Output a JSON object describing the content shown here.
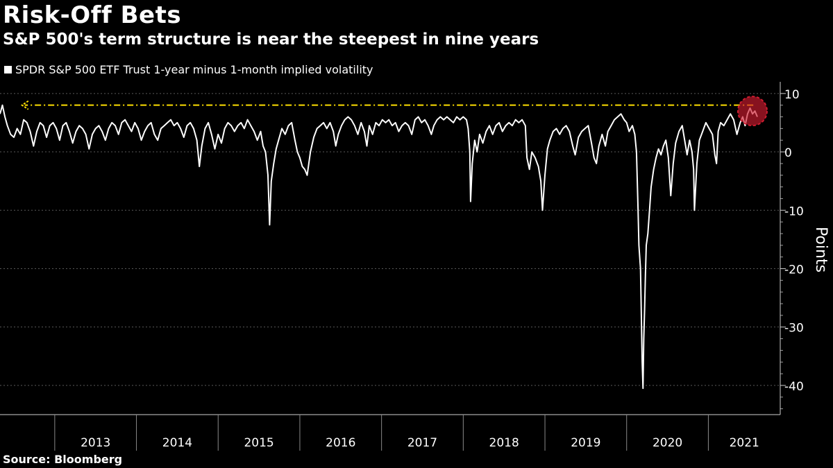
{
  "chart_data": {
    "type": "line",
    "title": "Risk-Off Bets",
    "subtitle": "S&P 500's term structure is near the steepest in nine years",
    "series": [
      {
        "name": "SPDR S&P 500 ETF Trust 1-year minus 1-month implied volatility",
        "color": "#ffffff",
        "points": [
          [
            2012.33,
            6.5
          ],
          [
            2012.36,
            8.0
          ],
          [
            2012.39,
            6.0
          ],
          [
            2012.42,
            4.5
          ],
          [
            2012.46,
            3.0
          ],
          [
            2012.5,
            2.5
          ],
          [
            2012.54,
            4.0
          ],
          [
            2012.58,
            3.0
          ],
          [
            2012.62,
            5.5
          ],
          [
            2012.66,
            5.0
          ],
          [
            2012.7,
            3.5
          ],
          [
            2012.74,
            1.0
          ],
          [
            2012.78,
            3.5
          ],
          [
            2012.82,
            5.0
          ],
          [
            2012.86,
            4.5
          ],
          [
            2012.9,
            2.5
          ],
          [
            2012.94,
            4.5
          ],
          [
            2012.98,
            5.0
          ],
          [
            2013.02,
            4.0
          ],
          [
            2013.06,
            2.0
          ],
          [
            2013.1,
            4.5
          ],
          [
            2013.14,
            5.0
          ],
          [
            2013.18,
            3.5
          ],
          [
            2013.22,
            1.5
          ],
          [
            2013.26,
            3.5
          ],
          [
            2013.3,
            4.5
          ],
          [
            2013.34,
            4.0
          ],
          [
            2013.38,
            3.0
          ],
          [
            2013.42,
            0.5
          ],
          [
            2013.46,
            3.0
          ],
          [
            2013.5,
            4.0
          ],
          [
            2013.54,
            4.5
          ],
          [
            2013.58,
            3.5
          ],
          [
            2013.62,
            2.0
          ],
          [
            2013.66,
            4.0
          ],
          [
            2013.7,
            5.0
          ],
          [
            2013.74,
            4.5
          ],
          [
            2013.78,
            3.0
          ],
          [
            2013.82,
            5.0
          ],
          [
            2013.86,
            5.5
          ],
          [
            2013.9,
            4.5
          ],
          [
            2013.94,
            3.5
          ],
          [
            2013.98,
            5.0
          ],
          [
            2014.02,
            4.0
          ],
          [
            2014.06,
            2.0
          ],
          [
            2014.1,
            3.5
          ],
          [
            2014.14,
            4.5
          ],
          [
            2014.18,
            5.0
          ],
          [
            2014.22,
            3.0
          ],
          [
            2014.26,
            2.0
          ],
          [
            2014.3,
            4.0
          ],
          [
            2014.34,
            4.5
          ],
          [
            2014.38,
            5.0
          ],
          [
            2014.42,
            5.5
          ],
          [
            2014.46,
            4.5
          ],
          [
            2014.5,
            5.0
          ],
          [
            2014.54,
            4.0
          ],
          [
            2014.58,
            2.5
          ],
          [
            2014.62,
            4.5
          ],
          [
            2014.66,
            5.0
          ],
          [
            2014.7,
            4.0
          ],
          [
            2014.74,
            2.0
          ],
          [
            2014.77,
            -2.5
          ],
          [
            2014.8,
            1.0
          ],
          [
            2014.84,
            4.0
          ],
          [
            2014.88,
            5.0
          ],
          [
            2014.92,
            3.0
          ],
          [
            2014.96,
            0.5
          ],
          [
            2015.0,
            3.0
          ],
          [
            2015.04,
            1.5
          ],
          [
            2015.08,
            4.0
          ],
          [
            2015.12,
            5.0
          ],
          [
            2015.16,
            4.5
          ],
          [
            2015.2,
            3.5
          ],
          [
            2015.24,
            4.5
          ],
          [
            2015.28,
            5.0
          ],
          [
            2015.32,
            4.0
          ],
          [
            2015.36,
            5.5
          ],
          [
            2015.4,
            4.5
          ],
          [
            2015.44,
            3.5
          ],
          [
            2015.48,
            2.0
          ],
          [
            2015.52,
            3.5
          ],
          [
            2015.55,
            1.0
          ],
          [
            2015.58,
            0.0
          ],
          [
            2015.61,
            -4.0
          ],
          [
            2015.63,
            -12.5
          ],
          [
            2015.65,
            -5.0
          ],
          [
            2015.68,
            -2.0
          ],
          [
            2015.71,
            0.5
          ],
          [
            2015.74,
            2.0
          ],
          [
            2015.78,
            4.0
          ],
          [
            2015.82,
            3.0
          ],
          [
            2015.86,
            4.5
          ],
          [
            2015.9,
            5.0
          ],
          [
            2015.94,
            2.0
          ],
          [
            2015.97,
            0.0
          ],
          [
            2016.0,
            -1.0
          ],
          [
            2016.03,
            -2.5
          ],
          [
            2016.06,
            -3.0
          ],
          [
            2016.09,
            -4.0
          ],
          [
            2016.13,
            0.0
          ],
          [
            2016.17,
            2.5
          ],
          [
            2016.21,
            4.0
          ],
          [
            2016.25,
            4.5
          ],
          [
            2016.29,
            5.0
          ],
          [
            2016.33,
            4.0
          ],
          [
            2016.37,
            5.0
          ],
          [
            2016.41,
            3.5
          ],
          [
            2016.44,
            1.0
          ],
          [
            2016.47,
            3.0
          ],
          [
            2016.51,
            4.5
          ],
          [
            2016.55,
            5.5
          ],
          [
            2016.59,
            6.0
          ],
          [
            2016.63,
            5.5
          ],
          [
            2016.67,
            4.5
          ],
          [
            2016.71,
            3.0
          ],
          [
            2016.75,
            5.0
          ],
          [
            2016.79,
            3.5
          ],
          [
            2016.82,
            1.0
          ],
          [
            2016.85,
            4.5
          ],
          [
            2016.89,
            3.0
          ],
          [
            2016.93,
            5.0
          ],
          [
            2016.97,
            4.5
          ],
          [
            2017.01,
            5.5
          ],
          [
            2017.05,
            5.0
          ],
          [
            2017.09,
            5.5
          ],
          [
            2017.13,
            4.5
          ],
          [
            2017.17,
            5.0
          ],
          [
            2017.21,
            3.5
          ],
          [
            2017.25,
            4.5
          ],
          [
            2017.29,
            5.0
          ],
          [
            2017.33,
            4.5
          ],
          [
            2017.37,
            3.0
          ],
          [
            2017.41,
            5.5
          ],
          [
            2017.45,
            6.0
          ],
          [
            2017.49,
            5.0
          ],
          [
            2017.53,
            5.5
          ],
          [
            2017.57,
            4.5
          ],
          [
            2017.61,
            3.0
          ],
          [
            2017.64,
            4.5
          ],
          [
            2017.68,
            5.5
          ],
          [
            2017.72,
            6.0
          ],
          [
            2017.76,
            5.5
          ],
          [
            2017.8,
            6.0
          ],
          [
            2017.84,
            5.5
          ],
          [
            2017.88,
            5.0
          ],
          [
            2017.92,
            6.0
          ],
          [
            2017.96,
            5.5
          ],
          [
            2018.0,
            6.0
          ],
          [
            2018.04,
            5.5
          ],
          [
            2018.06,
            4.0
          ],
          [
            2018.08,
            0.0
          ],
          [
            2018.09,
            -8.5
          ],
          [
            2018.11,
            -2.0
          ],
          [
            2018.14,
            2.0
          ],
          [
            2018.17,
            0.0
          ],
          [
            2018.2,
            3.0
          ],
          [
            2018.24,
            1.5
          ],
          [
            2018.28,
            3.5
          ],
          [
            2018.32,
            4.5
          ],
          [
            2018.36,
            3.0
          ],
          [
            2018.4,
            4.5
          ],
          [
            2018.44,
            5.0
          ],
          [
            2018.48,
            3.5
          ],
          [
            2018.52,
            4.5
          ],
          [
            2018.56,
            5.0
          ],
          [
            2018.6,
            4.5
          ],
          [
            2018.64,
            5.5
          ],
          [
            2018.68,
            5.0
          ],
          [
            2018.72,
            5.5
          ],
          [
            2018.76,
            4.5
          ],
          [
            2018.78,
            -1.0
          ],
          [
            2018.81,
            -3.0
          ],
          [
            2018.84,
            0.0
          ],
          [
            2018.88,
            -1.0
          ],
          [
            2018.92,
            -2.5
          ],
          [
            2018.95,
            -5.0
          ],
          [
            2018.97,
            -10.0
          ],
          [
            2019.0,
            -4.0
          ],
          [
            2019.03,
            0.5
          ],
          [
            2019.06,
            2.0
          ],
          [
            2019.1,
            3.5
          ],
          [
            2019.14,
            4.0
          ],
          [
            2019.18,
            3.0
          ],
          [
            2019.22,
            4.0
          ],
          [
            2019.26,
            4.5
          ],
          [
            2019.3,
            3.5
          ],
          [
            2019.34,
            1.0
          ],
          [
            2019.37,
            -0.5
          ],
          [
            2019.41,
            2.5
          ],
          [
            2019.45,
            3.5
          ],
          [
            2019.49,
            4.0
          ],
          [
            2019.53,
            4.5
          ],
          [
            2019.57,
            1.5
          ],
          [
            2019.6,
            -1.0
          ],
          [
            2019.63,
            -2.0
          ],
          [
            2019.66,
            1.0
          ],
          [
            2019.7,
            3.0
          ],
          [
            2019.74,
            1.0
          ],
          [
            2019.77,
            3.5
          ],
          [
            2019.81,
            4.5
          ],
          [
            2019.85,
            5.5
          ],
          [
            2019.89,
            6.0
          ],
          [
            2019.93,
            6.5
          ],
          [
            2019.97,
            5.5
          ],
          [
            2020.0,
            5.0
          ],
          [
            2020.03,
            3.5
          ],
          [
            2020.07,
            4.5
          ],
          [
            2020.1,
            3.0
          ],
          [
            2020.12,
            0.0
          ],
          [
            2020.14,
            -10.0
          ],
          [
            2020.15,
            -16.0
          ],
          [
            2020.17,
            -20.0
          ],
          [
            2020.18,
            -28.0
          ],
          [
            2020.19,
            -36.0
          ],
          [
            2020.2,
            -40.5
          ],
          [
            2020.21,
            -32.0
          ],
          [
            2020.22,
            -27.0
          ],
          [
            2020.23,
            -21.0
          ],
          [
            2020.24,
            -16.0
          ],
          [
            2020.26,
            -14.0
          ],
          [
            2020.28,
            -10.0
          ],
          [
            2020.3,
            -6.0
          ],
          [
            2020.33,
            -3.0
          ],
          [
            2020.36,
            -1.0
          ],
          [
            2020.39,
            0.5
          ],
          [
            2020.42,
            -0.5
          ],
          [
            2020.45,
            1.0
          ],
          [
            2020.48,
            2.0
          ],
          [
            2020.51,
            -1.0
          ],
          [
            2020.54,
            -7.5
          ],
          [
            2020.57,
            -2.0
          ],
          [
            2020.6,
            1.5
          ],
          [
            2020.64,
            3.5
          ],
          [
            2020.68,
            4.5
          ],
          [
            2020.71,
            2.0
          ],
          [
            2020.74,
            -0.5
          ],
          [
            2020.77,
            2.0
          ],
          [
            2020.8,
            0.0
          ],
          [
            2020.82,
            -3.0
          ],
          [
            2020.83,
            -10.0
          ],
          [
            2020.86,
            -2.0
          ],
          [
            2020.89,
            2.0
          ],
          [
            2020.93,
            3.5
          ],
          [
            2020.97,
            5.0
          ],
          [
            2021.01,
            4.0
          ],
          [
            2021.05,
            3.0
          ],
          [
            2021.08,
            -0.5
          ],
          [
            2021.1,
            -2.0
          ],
          [
            2021.12,
            3.5
          ],
          [
            2021.15,
            5.0
          ],
          [
            2021.19,
            4.5
          ],
          [
            2021.23,
            5.5
          ],
          [
            2021.27,
            6.5
          ],
          [
            2021.31,
            5.5
          ],
          [
            2021.35,
            3.0
          ],
          [
            2021.39,
            5.0
          ],
          [
            2021.42,
            6.0
          ],
          [
            2021.45,
            4.5
          ],
          [
            2021.48,
            6.5
          ],
          [
            2021.51,
            7.5
          ],
          [
            2021.54,
            6.5
          ],
          [
            2021.57,
            7.0
          ],
          [
            2021.6,
            6.0
          ]
        ]
      }
    ],
    "x_ticks": [
      2013,
      2014,
      2015,
      2016,
      2017,
      2018,
      2019,
      2020,
      2021
    ],
    "xlim": [
      2012.33,
      2021.88
    ],
    "y_ticks": [
      10,
      0,
      -10,
      -20,
      -30,
      -40
    ],
    "y_tick_labels": [
      "10",
      "0",
      "-10",
      "-20",
      "-30",
      "-40"
    ],
    "ylim": [
      -45,
      12
    ],
    "ylabel": "Points",
    "grid": "horizontal dotted",
    "legend": "top-left",
    "annotations": [
      {
        "type": "dashed-arrow-line",
        "color": "#ffe000",
        "y": 8.0,
        "x_from": 2021.55,
        "x_to": 2012.6
      },
      {
        "type": "circle-highlight",
        "color": "#d01c30",
        "x": 2021.54,
        "y": 7.0
      }
    ]
  },
  "source": "Source: Bloomberg"
}
